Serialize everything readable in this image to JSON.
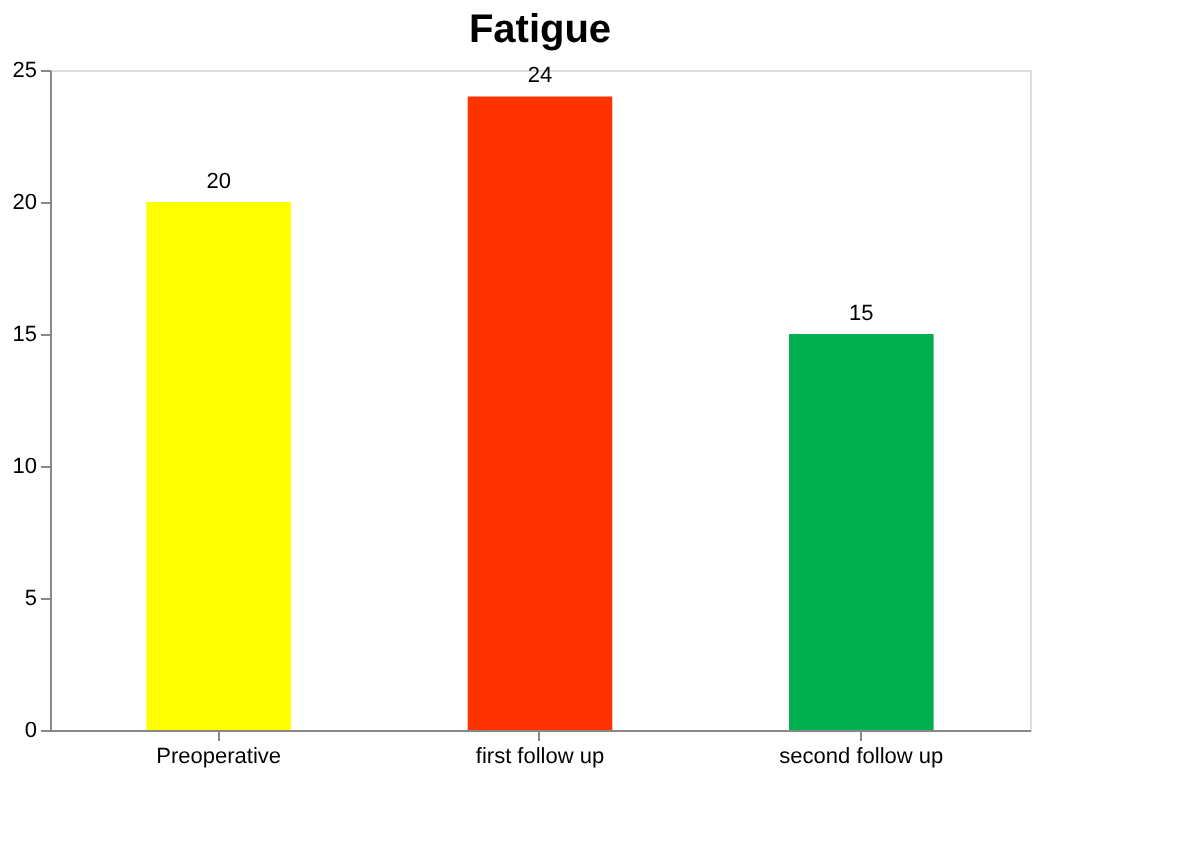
{
  "chart_data": {
    "type": "bar",
    "title": "Fatigue",
    "categories": [
      "Preoperative",
      "first follow up",
      "second follow up"
    ],
    "values": [
      20,
      24,
      15
    ],
    "colors": [
      "#ffff00",
      "#ff3300",
      "#00b050"
    ],
    "ylim": [
      0,
      25
    ],
    "yticks": [
      0,
      5,
      10,
      15,
      20,
      25
    ],
    "data_labels": true,
    "grid": false
  }
}
